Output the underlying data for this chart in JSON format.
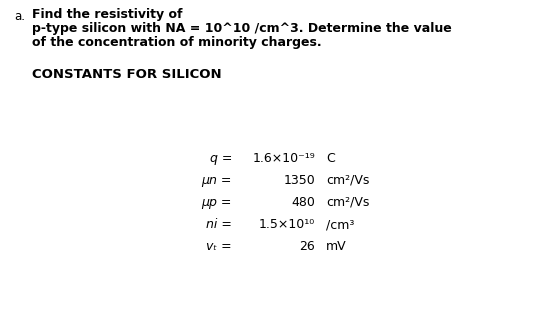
{
  "bg_color": "#ffffff",
  "label_a": "a.",
  "line1": "Find the resistivity of",
  "line2": "p-type silicon with NA = 10^10 /cm^3. Determine the value",
  "line3": "of the concentration of minority charges.",
  "section_title": "CONSTANTS FOR SILICON",
  "row_labels": [
    "q =",
    "μn =",
    "μp =",
    "ni =",
    "vₜ ="
  ],
  "row_values": [
    "1.6×10⁻¹⁹",
    "1350",
    "480",
    "1.5×10¹⁰",
    "26"
  ],
  "row_units": [
    "C",
    "cm²/Vs",
    "cm²/Vs",
    "/cm³",
    "mV"
  ],
  "fig_width": 5.48,
  "fig_height": 3.31,
  "dpi": 100
}
